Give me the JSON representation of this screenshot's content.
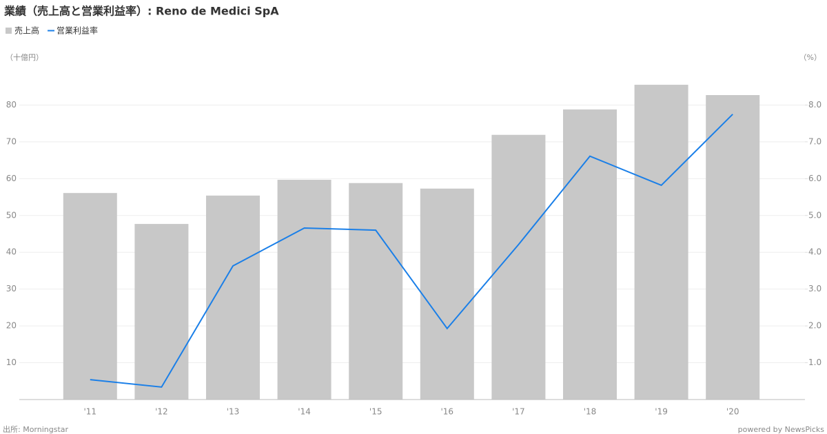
{
  "chart_data": {
    "type": "bar-line",
    "title": "業績（売上高と営業利益率）: Reno de Medici SpA",
    "y_label": "（十億円）",
    "y2_label": "（%）",
    "source": "出所: Morningstar",
    "credit": "powered by NewsPicks",
    "categories": [
      "'11",
      "'12",
      "'13",
      "'14",
      "'15",
      "'16",
      "'17",
      "'18",
      "'19",
      "'20"
    ],
    "series": [
      {
        "name": "売上高",
        "color": "#c8c8c8",
        "kind": "bar",
        "values": [
          56.1,
          47.7,
          55.4,
          59.7,
          58.8,
          57.3,
          71.9,
          78.8,
          85.5,
          82.7
        ]
      },
      {
        "name": "営業利益率",
        "color": "#1a7fe8",
        "kind": "line",
        "axis": "y2",
        "values": [
          0.54,
          0.34,
          3.63,
          4.66,
          4.6,
          1.93,
          4.21,
          6.61,
          5.82,
          7.75
        ]
      }
    ],
    "ylim": [
      0,
      90
    ],
    "yticks": [
      10,
      20,
      30,
      40,
      50,
      60,
      70,
      80
    ],
    "y2lim": [
      0,
      9
    ],
    "y2ticks": [
      {
        "value": 1,
        "label": "1.0"
      },
      {
        "value": 2,
        "label": "2.0"
      },
      {
        "value": 3,
        "label": "3.0"
      },
      {
        "value": 4,
        "label": "4.0"
      },
      {
        "value": 5,
        "label": "5.0"
      },
      {
        "value": 6,
        "label": "6.0"
      },
      {
        "value": 7,
        "label": "7.0"
      },
      {
        "value": 8,
        "label": "8.0"
      }
    ],
    "grid": true
  }
}
